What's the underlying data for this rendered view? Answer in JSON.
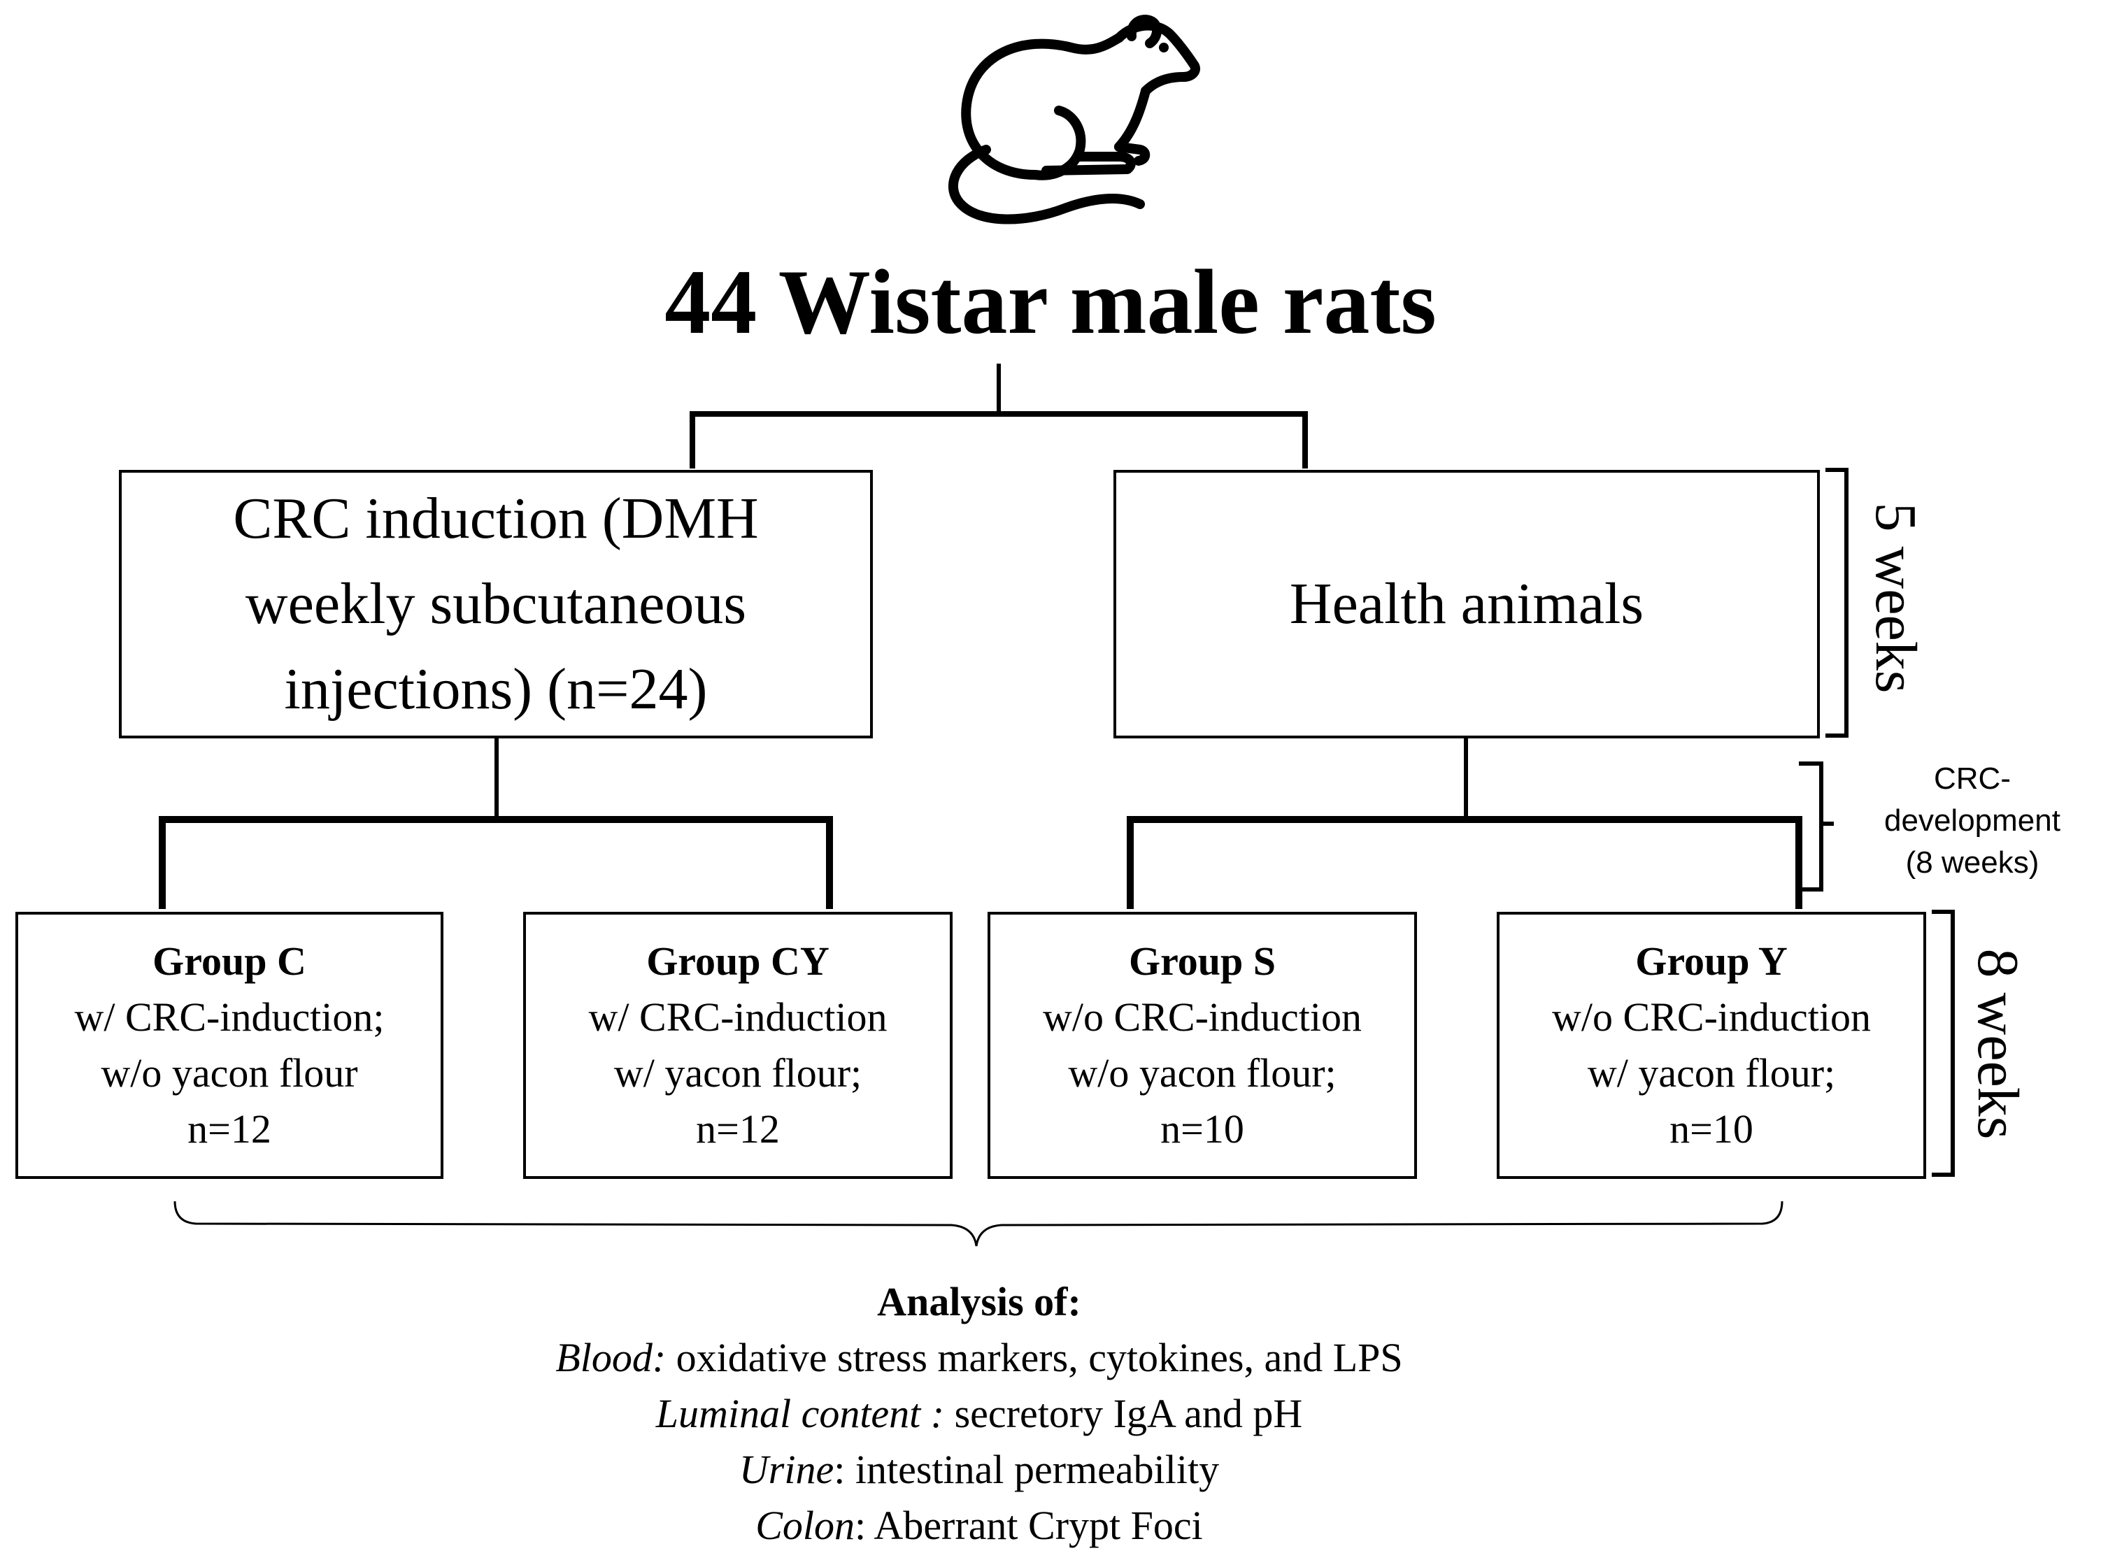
{
  "title": "44 Wistar male rats",
  "icons": {
    "rat": "rat-icon"
  },
  "branches": {
    "left": {
      "lines": [
        "CRC induction (DMH",
        "weekly subcutaneous",
        "injections) (n=24)"
      ]
    },
    "right": {
      "label": "Health animals"
    }
  },
  "durations": {
    "phase1": "5 weeks",
    "phase2": [
      "CRC-",
      "development",
      "(8 weeks)"
    ],
    "phase3": "8 weeks"
  },
  "groups": [
    {
      "title": "Group C",
      "line1": "w/ CRC-induction;",
      "line2": "w/o yacon flour",
      "line3": "n=12"
    },
    {
      "title": "Group CY",
      "line1": "w/ CRC-induction",
      "line2": "w/ yacon flour;",
      "line3": "n=12"
    },
    {
      "title": "Group S",
      "line1": "w/o CRC-induction",
      "line2": "w/o yacon flour;",
      "line3": "n=10"
    },
    {
      "title": "Group Y",
      "line1": "w/o CRC-induction",
      "line2": "w/ yacon flour;",
      "line3": "n=10"
    }
  ],
  "analysis": {
    "title": "Analysis of:",
    "items": [
      {
        "label": "Blood:",
        "text": " oxidative stress markers, cytokines, and LPS"
      },
      {
        "label": "Luminal content :",
        "text": " secretory IgA and pH"
      },
      {
        "label": "Urine",
        "text": ": intestinal permeability"
      },
      {
        "label": "Colon",
        "text": ": Aberrant Crypt Foci"
      }
    ]
  }
}
